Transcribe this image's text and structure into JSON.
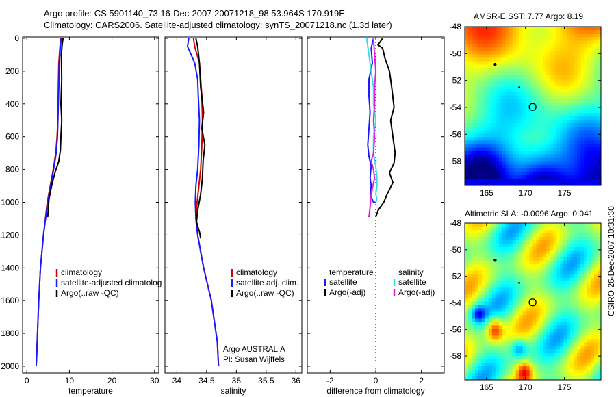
{
  "header": {
    "line1": "Argo profile: CS 5901140_73 16-Dec-2007 20071218_98 53.964S 170.919E",
    "line2": "Climatology: CARS2006. Satellite-adjusted climatology: synTS_20071218.nc (1.3d later)"
  },
  "footer": {
    "credit": "Argo AUSTRALIA",
    "pi": "PI: Susan Wijffels",
    "stamp": "CSIRO 26-Dec-2007 10:31:30"
  },
  "colors": {
    "climatology": "#d40000",
    "satellite": "#1a1aff",
    "argo": "#000000",
    "sal_satellite": "#33e0e0",
    "sal_argo": "#e020e0"
  },
  "chart_data": [
    {
      "type": "line",
      "xlabel": "temperature",
      "ylabel": "",
      "xlim": [
        -1,
        31
      ],
      "ylim": [
        2050,
        0
      ],
      "xticks": [
        0,
        10,
        20,
        30
      ],
      "yticks": [
        0,
        200,
        400,
        600,
        800,
        1000,
        1200,
        1400,
        1600,
        1800,
        2000
      ],
      "legend": [
        "climatology",
        "satellite-adjusted climatolog",
        "Argo(..raw -QC)"
      ],
      "series": [
        {
          "name": "climatology",
          "color": "#d40000",
          "x": [
            8.0,
            7.8,
            7.5,
            7.4,
            7.3,
            7.1,
            6.8,
            6.2,
            5.5,
            4.8,
            3.9,
            3.2,
            2.8,
            2.5,
            2.3,
            2.2
          ],
          "y": [
            0,
            50,
            150,
            300,
            500,
            600,
            700,
            800,
            900,
            1000,
            1200,
            1400,
            1600,
            1800,
            1950,
            2000
          ]
        },
        {
          "name": "satellite-adjusted climatology",
          "color": "#1a1aff",
          "x": [
            8.1,
            7.9,
            7.6,
            7.5,
            7.3,
            7.2,
            6.9,
            6.3,
            5.6,
            4.9,
            3.9,
            3.2,
            2.8,
            2.5,
            2.3,
            2.2
          ],
          "y": [
            0,
            50,
            150,
            300,
            500,
            600,
            700,
            800,
            900,
            1000,
            1200,
            1400,
            1600,
            1800,
            1950,
            2000
          ]
        },
        {
          "name": "Argo(..raw -QC)",
          "color": "#000000",
          "x": [
            8.5,
            8.3,
            8.1,
            8.2,
            8.0,
            8.2,
            8.0,
            7.9,
            7.5,
            6.6,
            6.0,
            5.6,
            5.2,
            4.9
          ],
          "y": [
            0,
            40,
            100,
            250,
            400,
            500,
            600,
            680,
            750,
            820,
            880,
            930,
            980,
            1090
          ]
        }
      ]
    },
    {
      "type": "line",
      "xlabel": "salinity",
      "ylabel": "",
      "xlim": [
        33.8,
        36.1
      ],
      "ylim": [
        2050,
        0
      ],
      "xticks": [
        34,
        34.5,
        35,
        35.5,
        36
      ],
      "legend": [
        "climatology",
        "satellite adj. clim.",
        "Argo(..raw -QC)"
      ],
      "series": [
        {
          "name": "climatology",
          "color": "#d40000",
          "x": [
            34.28,
            34.3,
            34.38,
            34.4,
            34.42,
            34.43,
            34.42,
            34.4,
            34.37,
            34.34,
            34.32,
            34.35,
            34.45,
            34.58,
            34.68,
            34.7
          ],
          "y": [
            0,
            50,
            150,
            250,
            350,
            500,
            650,
            800,
            900,
            1000,
            1100,
            1200,
            1400,
            1600,
            1850,
            2000
          ]
        },
        {
          "name": "satellite adj. clim.",
          "color": "#1a1aff",
          "x": [
            34.2,
            34.18,
            34.3,
            34.35,
            34.36,
            34.38,
            34.37,
            34.35,
            34.32,
            34.31,
            34.32,
            34.35,
            34.45,
            34.58,
            34.68,
            34.7
          ],
          "y": [
            0,
            50,
            150,
            250,
            350,
            500,
            650,
            800,
            900,
            1000,
            1100,
            1200,
            1400,
            1600,
            1850,
            2000
          ]
        },
        {
          "name": "Argo(..raw -QC)",
          "color": "#000000",
          "x": [
            34.32,
            34.35,
            34.38,
            34.4,
            34.45,
            34.42,
            34.47,
            34.44,
            34.43,
            34.4,
            34.35,
            34.33,
            34.38,
            34.4
          ],
          "y": [
            0,
            50,
            150,
            300,
            450,
            550,
            650,
            750,
            850,
            950,
            1050,
            1120,
            1180,
            1220
          ]
        }
      ]
    },
    {
      "type": "line",
      "xlabel": "difference from climatology",
      "ylabel": "",
      "xlim": [
        -3,
        3
      ],
      "ylim": [
        2050,
        0
      ],
      "xticks": [
        -2,
        0,
        2
      ],
      "legend_title_1": "temperature",
      "legend_title_2": "salinity",
      "legend": [
        "satellite",
        "Argo(-adj)",
        "satellite",
        "Argo(-adj)"
      ],
      "series": [
        {
          "name": "temperature satellite",
          "color": "#1a1aff",
          "x": [
            -0.1,
            -0.2,
            -0.15,
            -0.3,
            -0.3,
            -0.25,
            -0.3,
            -0.35,
            -0.3,
            -0.2,
            -0.25,
            -0.2,
            -0.25,
            -0.1,
            0.0
          ],
          "y": [
            0,
            60,
            150,
            250,
            350,
            450,
            550,
            650,
            720,
            780,
            850,
            900,
            950,
            1000,
            1000
          ]
        },
        {
          "name": "temperature Argo(-adj)",
          "color": "#000000",
          "x": [
            0.3,
            0.1,
            0.3,
            0.4,
            0.6,
            0.7,
            0.8,
            0.65,
            0.75,
            0.85,
            0.8,
            0.6,
            0.75,
            0.5,
            0.35,
            0.1,
            0.0
          ],
          "y": [
            0,
            40,
            60,
            120,
            200,
            300,
            420,
            500,
            600,
            700,
            760,
            820,
            880,
            950,
            1000,
            1050,
            1090
          ]
        },
        {
          "name": "salinity satellite",
          "color": "#33e0e0",
          "x": [
            -0.4,
            -0.3,
            -0.2,
            -0.1,
            -0.1,
            0.0,
            -0.1,
            -0.1,
            0.0,
            0.05,
            0.05,
            0.0,
            0.05,
            0.0
          ],
          "y": [
            0,
            100,
            200,
            300,
            400,
            500,
            600,
            700,
            780,
            850,
            900,
            950,
            980,
            1000
          ]
        },
        {
          "name": "salinity Argo(-adj)",
          "color": "#e020e0",
          "x": [
            -0.1,
            -0.05,
            0.0,
            -0.05,
            -0.05,
            -0.1,
            -0.05,
            -0.1,
            -0.2,
            -0.1,
            -0.05,
            -0.2,
            -0.25,
            -0.3
          ],
          "y": [
            0,
            100,
            200,
            300,
            400,
            500,
            600,
            700,
            750,
            800,
            850,
            950,
            1030,
            1090
          ]
        }
      ]
    },
    {
      "type": "heatmap",
      "title": "AMSR-E SST: 7.77 Argo: 8.19",
      "xlim": [
        162.2,
        179.7
      ],
      "ylim": [
        -59.8,
        -48
      ],
      "xticks": [
        165,
        170,
        175
      ],
      "yticks": [
        -48,
        -50,
        -52,
        -54,
        -56,
        -58
      ],
      "field": "sst",
      "marker": {
        "lon": 170.919,
        "lat": -53.964
      }
    },
    {
      "type": "heatmap",
      "title": "Altimetric SLA: -0.0096 Argo: 0.041",
      "xlim": [
        162.2,
        179.7
      ],
      "ylim": [
        -59.8,
        -48
      ],
      "xticks": [
        165,
        170,
        175
      ],
      "yticks": [
        -48,
        -50,
        -52,
        -54,
        -56,
        -58
      ],
      "field": "sla",
      "marker": {
        "lon": 170.919,
        "lat": -53.964
      }
    }
  ]
}
